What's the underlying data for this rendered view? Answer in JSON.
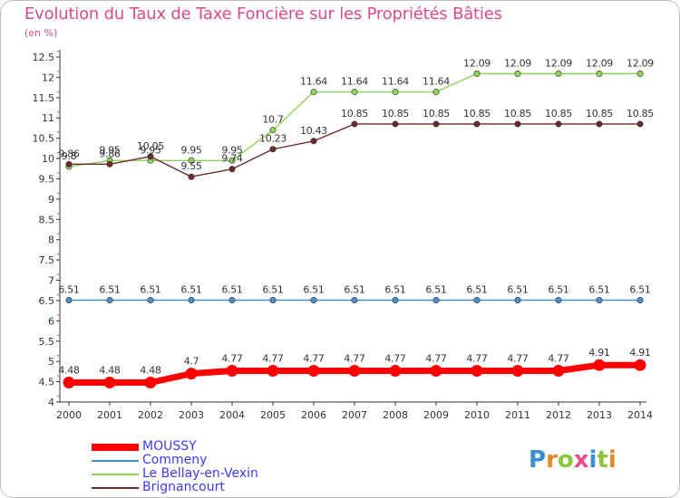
{
  "title": "Evolution du Taux de Taxe Foncière sur les Propriétés Bâties",
  "unit": "(en %)",
  "logo": {
    "letters": [
      "P",
      "r",
      "o",
      "x",
      "i",
      "t",
      "i"
    ],
    "colors": [
      "#3b8fd1",
      "#e58a2b",
      "#8cc63f",
      "#e94e8a",
      "#3b8fd1",
      "#8cc63f",
      "#e58a2b"
    ]
  },
  "chart_data": {
    "type": "line",
    "x": [
      "2000",
      "2001",
      "2002",
      "2003",
      "2004",
      "2005",
      "2006",
      "2007",
      "2008",
      "2009",
      "2010",
      "2011",
      "2012",
      "2013",
      "2014"
    ],
    "ylim": [
      4,
      12.5
    ],
    "yticks": [
      "4",
      "4.5",
      "5",
      "5.5",
      "6",
      "6.5",
      "7",
      "7.5",
      "8",
      "8.5",
      "9",
      "9.5",
      "10",
      "10.5",
      "11",
      "11.5",
      "12",
      "12.5"
    ],
    "grid": false,
    "series": [
      {
        "name": "MOUSSY",
        "color": "#ff0000",
        "values": [
          4.48,
          4.48,
          4.48,
          4.7,
          4.77,
          4.77,
          4.77,
          4.77,
          4.77,
          4.77,
          4.77,
          4.77,
          4.77,
          4.91,
          4.91
        ],
        "labels": [
          "4.48",
          "4.48",
          "4.48",
          "4.7",
          "4.77",
          "4.77",
          "4.77",
          "4.77",
          "4.77",
          "4.77",
          "4.77",
          "4.77",
          "4.77",
          "4.91",
          "4.91"
        ]
      },
      {
        "name": "Commeny",
        "color": "#4a90c8",
        "values": [
          6.51,
          6.51,
          6.51,
          6.51,
          6.51,
          6.51,
          6.51,
          6.51,
          6.51,
          6.51,
          6.51,
          6.51,
          6.51,
          6.51,
          6.51
        ],
        "labels": [
          "6.51",
          "6.51",
          "6.51",
          "6.51",
          "6.51",
          "6.51",
          "6.51",
          "6.51",
          "6.51",
          "6.51",
          "6.51",
          "6.51",
          "6.51",
          "6.51",
          "6.51"
        ]
      },
      {
        "name": "Le Bellay-en-Vexin",
        "color": "#8ed45a",
        "values": [
          9.8,
          9.95,
          9.95,
          9.95,
          9.95,
          10.7,
          11.64,
          11.64,
          11.64,
          11.64,
          12.09,
          12.09,
          12.09,
          12.09,
          12.09
        ],
        "labels": [
          "9.8",
          "9.95",
          "9.95",
          "9.95",
          "9.95",
          "10.7",
          "11.64",
          "11.64",
          "11.64",
          "11.64",
          "12.09",
          "12.09",
          "12.09",
          "12.09",
          "12.09"
        ]
      },
      {
        "name": "Brignancourt",
        "color": "#6b2b2b",
        "values": [
          9.86,
          9.86,
          10.05,
          9.55,
          9.74,
          10.23,
          10.43,
          10.85,
          10.85,
          10.85,
          10.85,
          10.85,
          10.85,
          10.85,
          10.85
        ],
        "labels": [
          "9.86",
          "9.86",
          "10.05",
          "9.55",
          "9.74",
          "10.23",
          "10.43",
          "10.85",
          "10.85",
          "10.85",
          "10.85",
          "10.85",
          "10.85",
          "10.85",
          "10.85"
        ]
      }
    ]
  }
}
